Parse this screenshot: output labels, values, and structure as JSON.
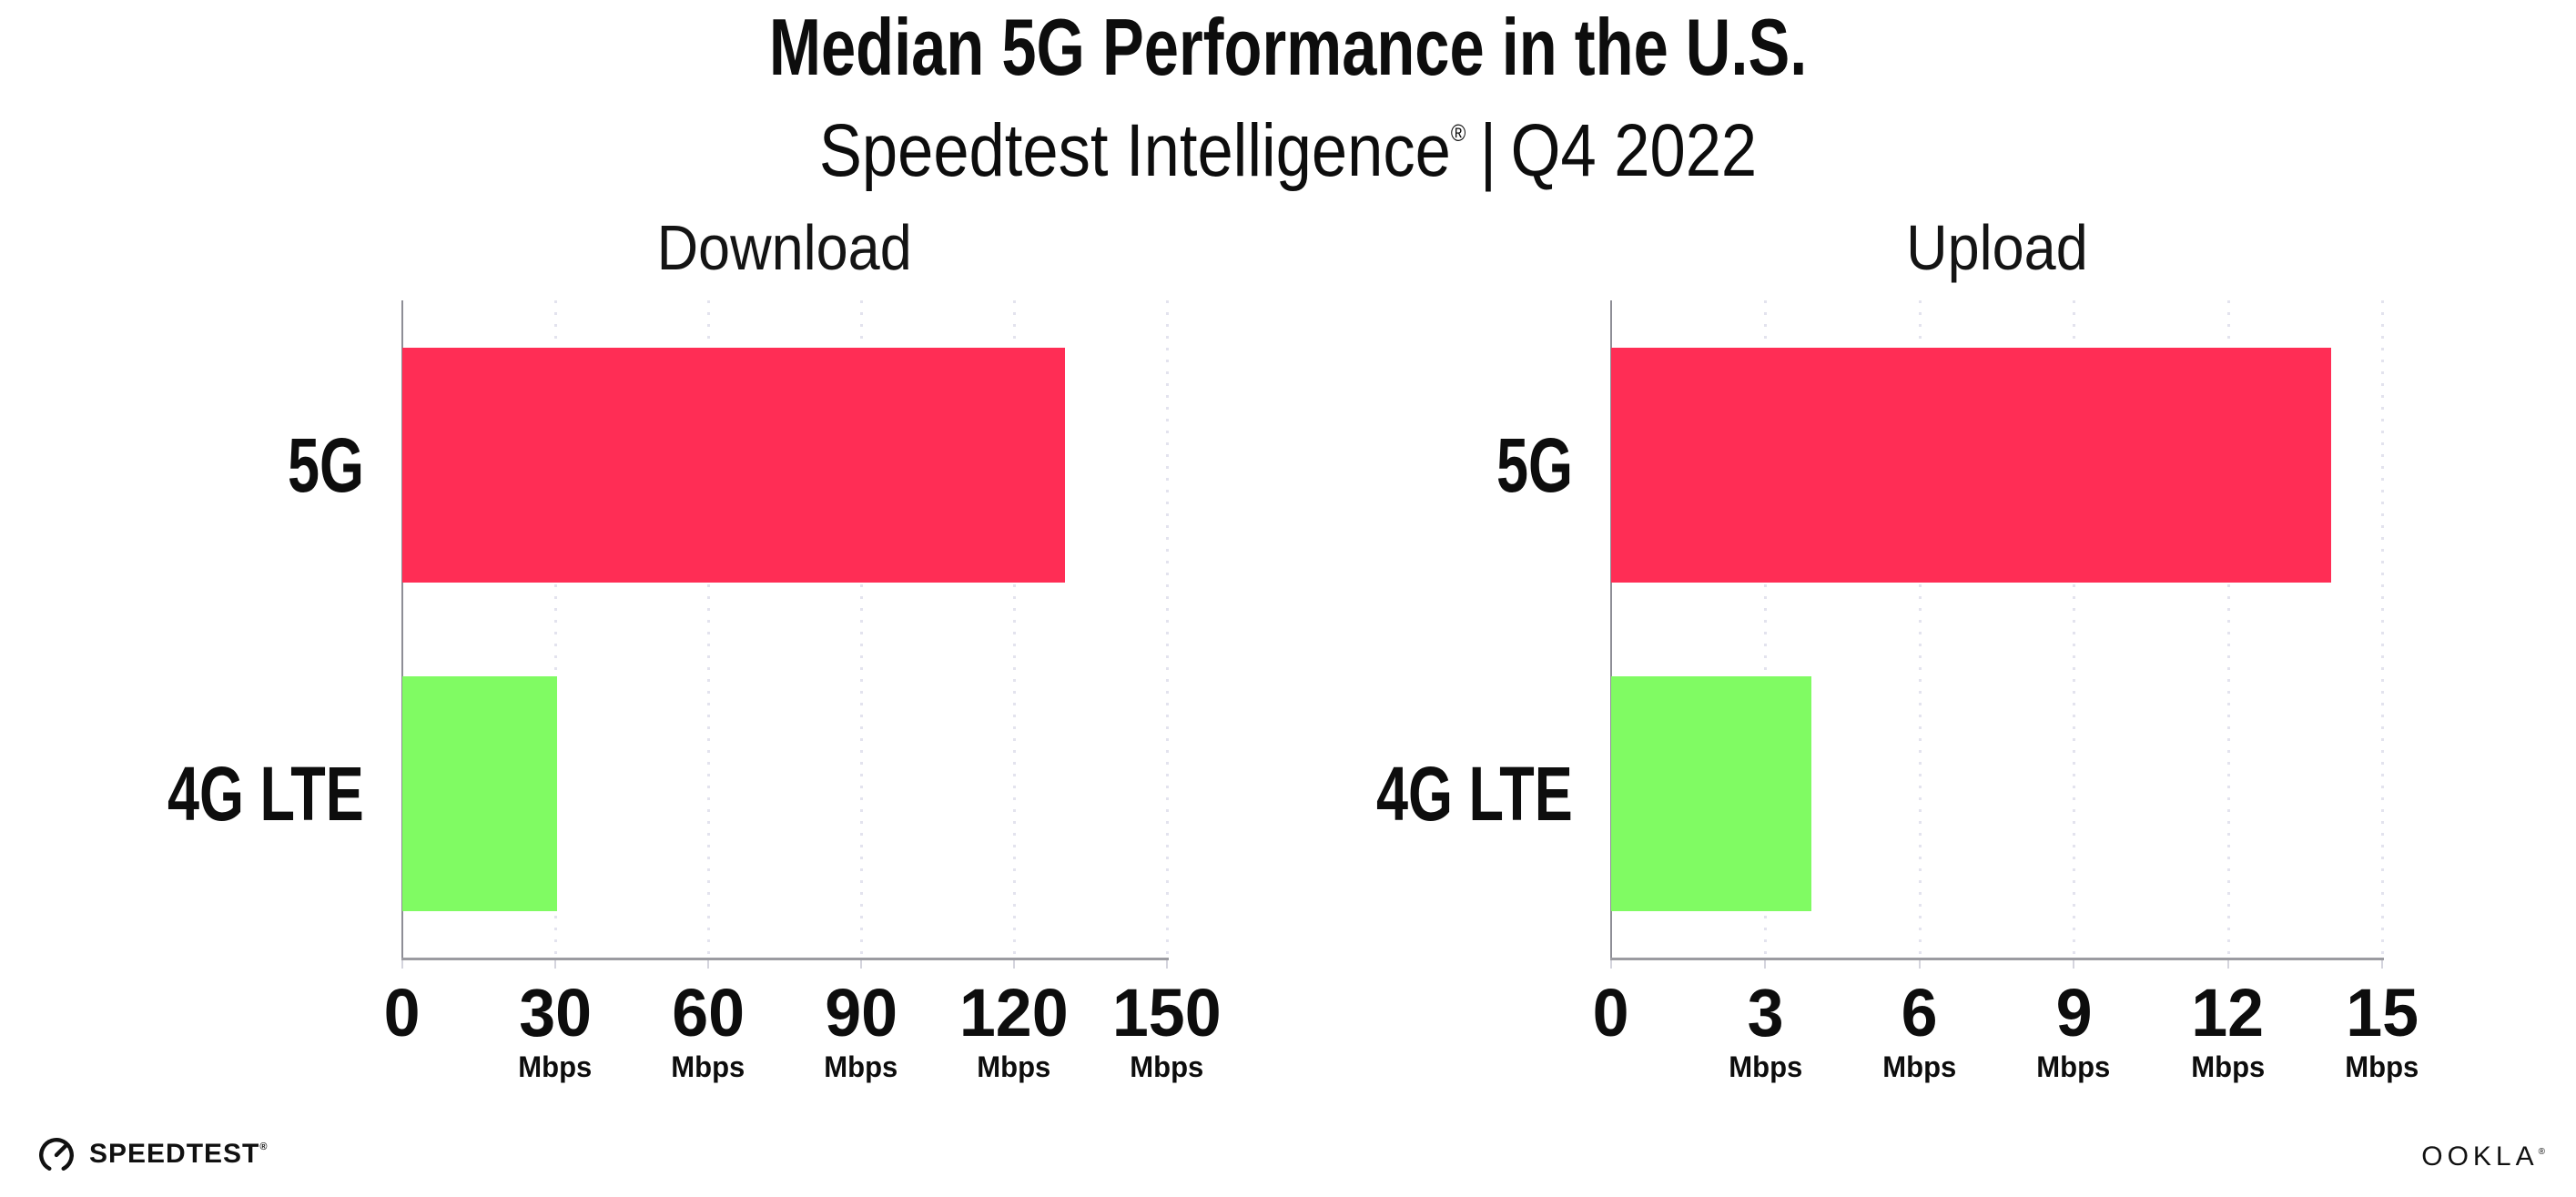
{
  "title": "Median 5G Performance in the U.S.",
  "subtitle": {
    "brand": "Speedtest Intelligence",
    "registered_mark": "®",
    "separator": "|",
    "period": "Q4 2022"
  },
  "chart_data": [
    {
      "type": "bar",
      "orientation": "horizontal",
      "title": "Download",
      "categories": [
        "5G",
        "4G LTE"
      ],
      "values": [
        130,
        30.3
      ],
      "unit": "Mbps",
      "xlim": [
        0,
        150
      ],
      "x_ticks": [
        0,
        30,
        60,
        90,
        120,
        150
      ],
      "bar_colors": [
        "#ff2d55",
        "#80fb63"
      ],
      "grid": "vertical-dotted",
      "legend": "none"
    },
    {
      "type": "bar",
      "orientation": "horizontal",
      "title": "Upload",
      "categories": [
        "5G",
        "4G LTE"
      ],
      "values": [
        14,
        3.9
      ],
      "unit": "Mbps",
      "xlim": [
        0,
        15
      ],
      "x_ticks": [
        0,
        3,
        6,
        9,
        12,
        15
      ],
      "bar_colors": [
        "#ff2d55",
        "#80fb63"
      ],
      "grid": "vertical-dotted",
      "legend": "none"
    }
  ],
  "footer": {
    "speedtest_logo_text": "SPEEDTEST",
    "speedtest_registered_mark": "®",
    "ookla_logo_text": "OOKLA",
    "ookla_registered_mark": "®"
  },
  "colors": {
    "bar_5g": "#ff2d55",
    "bar_4g_lte": "#80fb63",
    "axis_line": "#9b9ba1",
    "gridline": "#e3e3ee",
    "text": "#0d0d0d",
    "background": "#ffffff"
  }
}
